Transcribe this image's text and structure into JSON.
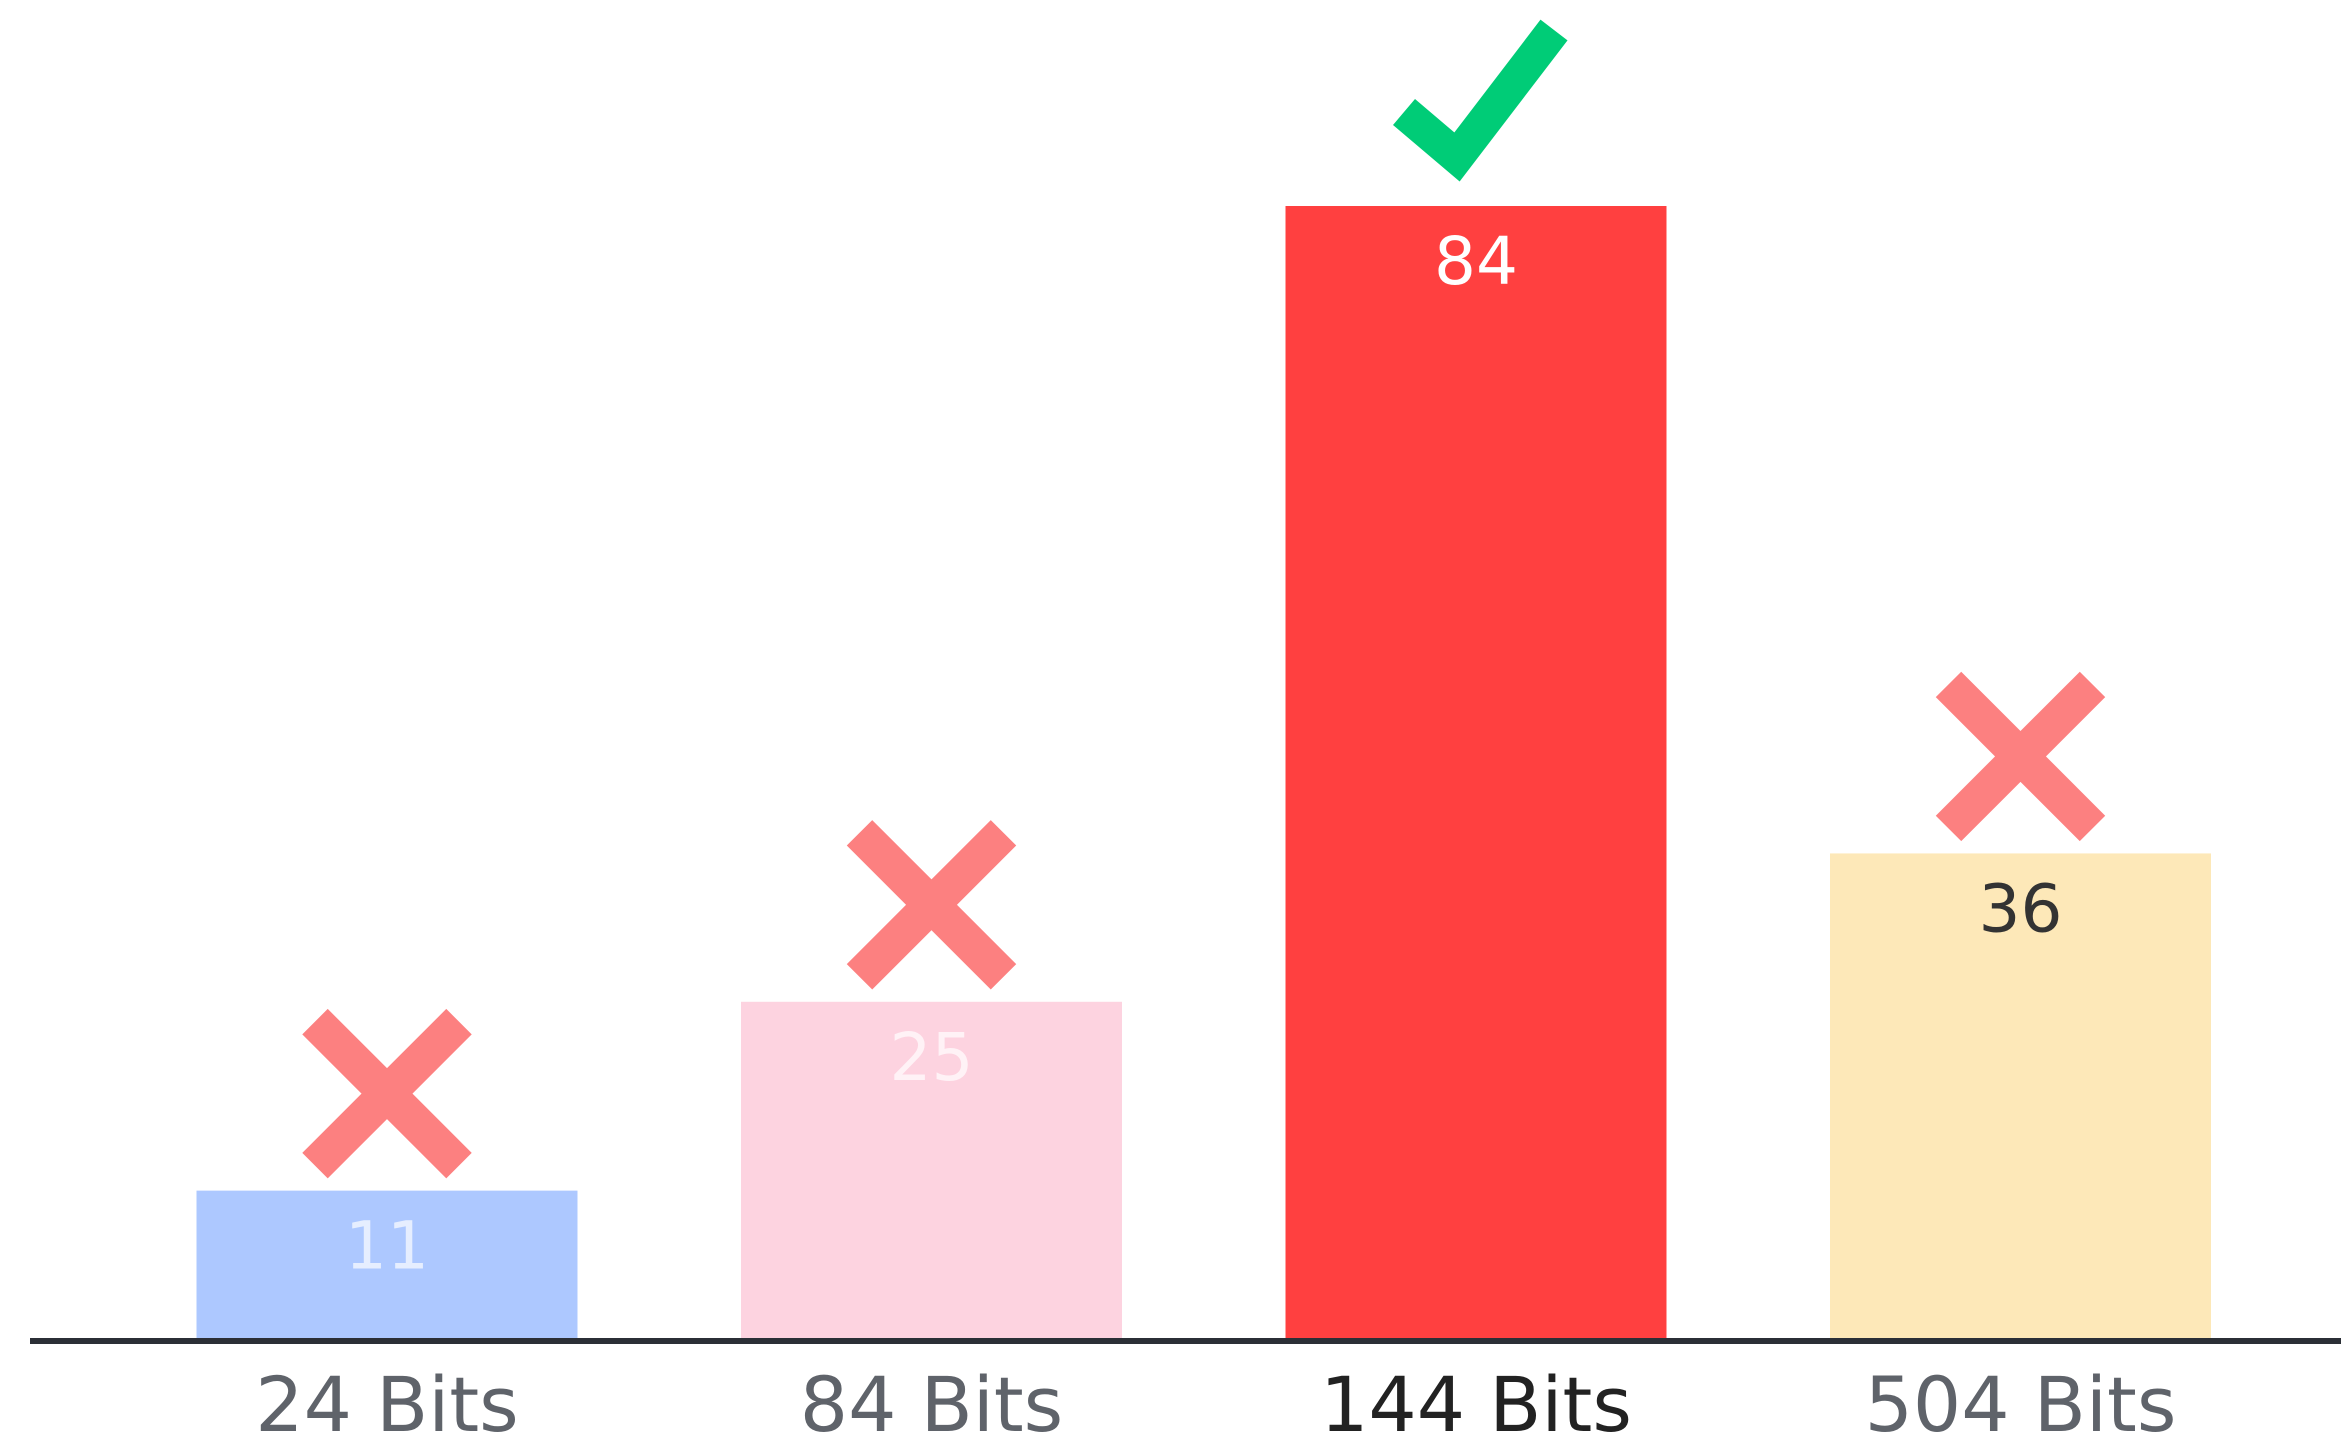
{
  "chart_data": {
    "type": "bar",
    "categories": [
      "24 Bits",
      "84 Bits",
      "144 Bits",
      "504 Bits"
    ],
    "values": [
      11,
      25,
      84,
      36
    ],
    "colors": [
      "#adc8ff",
      "#fdd3e0",
      "#ff4040",
      "#fde8b8"
    ]
  }
}
